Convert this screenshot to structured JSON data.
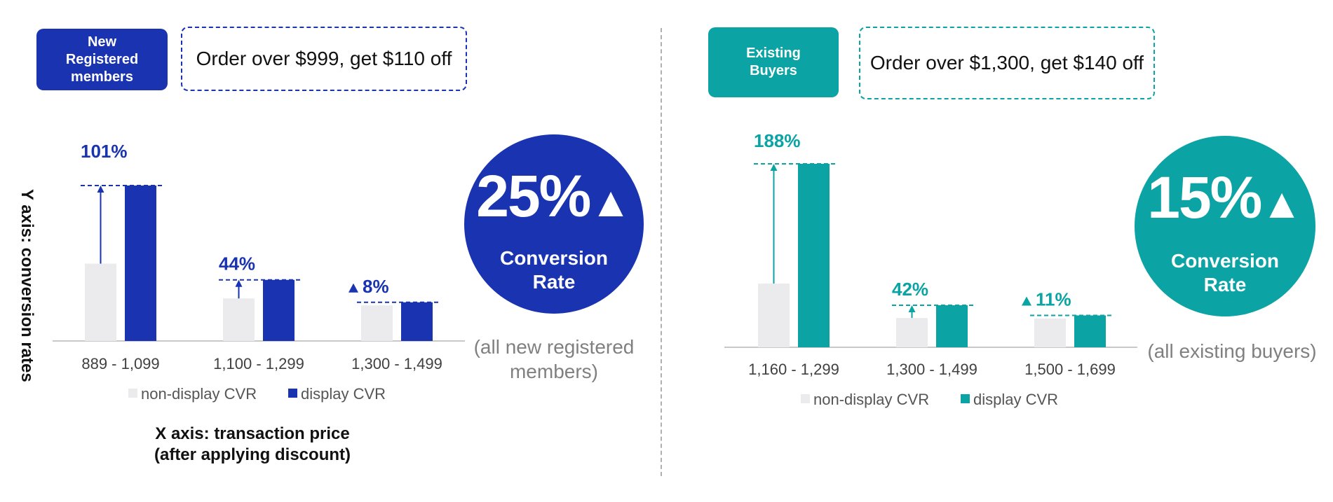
{
  "left_panel": {
    "tag": "New\nRegistered\nmembers",
    "offer": "Order over $999, get $110 off",
    "badge_value": "25%",
    "badge_label": "Conversion\nRate",
    "caption": "(all new registered\nmembers)",
    "x_axis_title": "X axis: transaction price\n(after applying discount)",
    "y_axis_title": "Y axis: conversion rates"
  },
  "right_panel": {
    "tag": "Existing\nBuyers",
    "offer": "Order over $1,300, get $140 off",
    "badge_value": "15%",
    "badge_label": "Conversion\nRate",
    "caption": "(all existing buyers)"
  },
  "colors": {
    "blue": "#1a33b0",
    "teal": "#0ba3a3",
    "grey_bar": "#ebebee",
    "axis": "#c8c8c8",
    "tick_text": "#404040"
  },
  "chart_data": [
    {
      "type": "bar",
      "categories": [
        "889 - 1,099",
        "1,100 - 1,299",
        "1,300 - 1,499"
      ],
      "series": [
        {
          "name": "non-display CVR",
          "values": [
            1.0,
            0.55,
            0.46
          ]
        },
        {
          "name": "display CVR",
          "values": [
            2.01,
            0.79,
            0.5
          ]
        }
      ],
      "annotations": [
        "101%",
        "44%",
        "8%"
      ],
      "ylim": [
        0,
        2.3
      ],
      "legend": "bottom"
    },
    {
      "type": "bar",
      "categories": [
        "1,160 - 1,299",
        "1,300 - 1,499",
        "1,500 - 1,699"
      ],
      "series": [
        {
          "name": "non-display CVR",
          "values": [
            1.0,
            0.46,
            0.45
          ]
        },
        {
          "name": "display CVR",
          "values": [
            2.88,
            0.66,
            0.5
          ]
        }
      ],
      "annotations": [
        "188%",
        "42%",
        "11%"
      ],
      "ylim": [
        0,
        3.4
      ],
      "legend": "bottom"
    }
  ]
}
